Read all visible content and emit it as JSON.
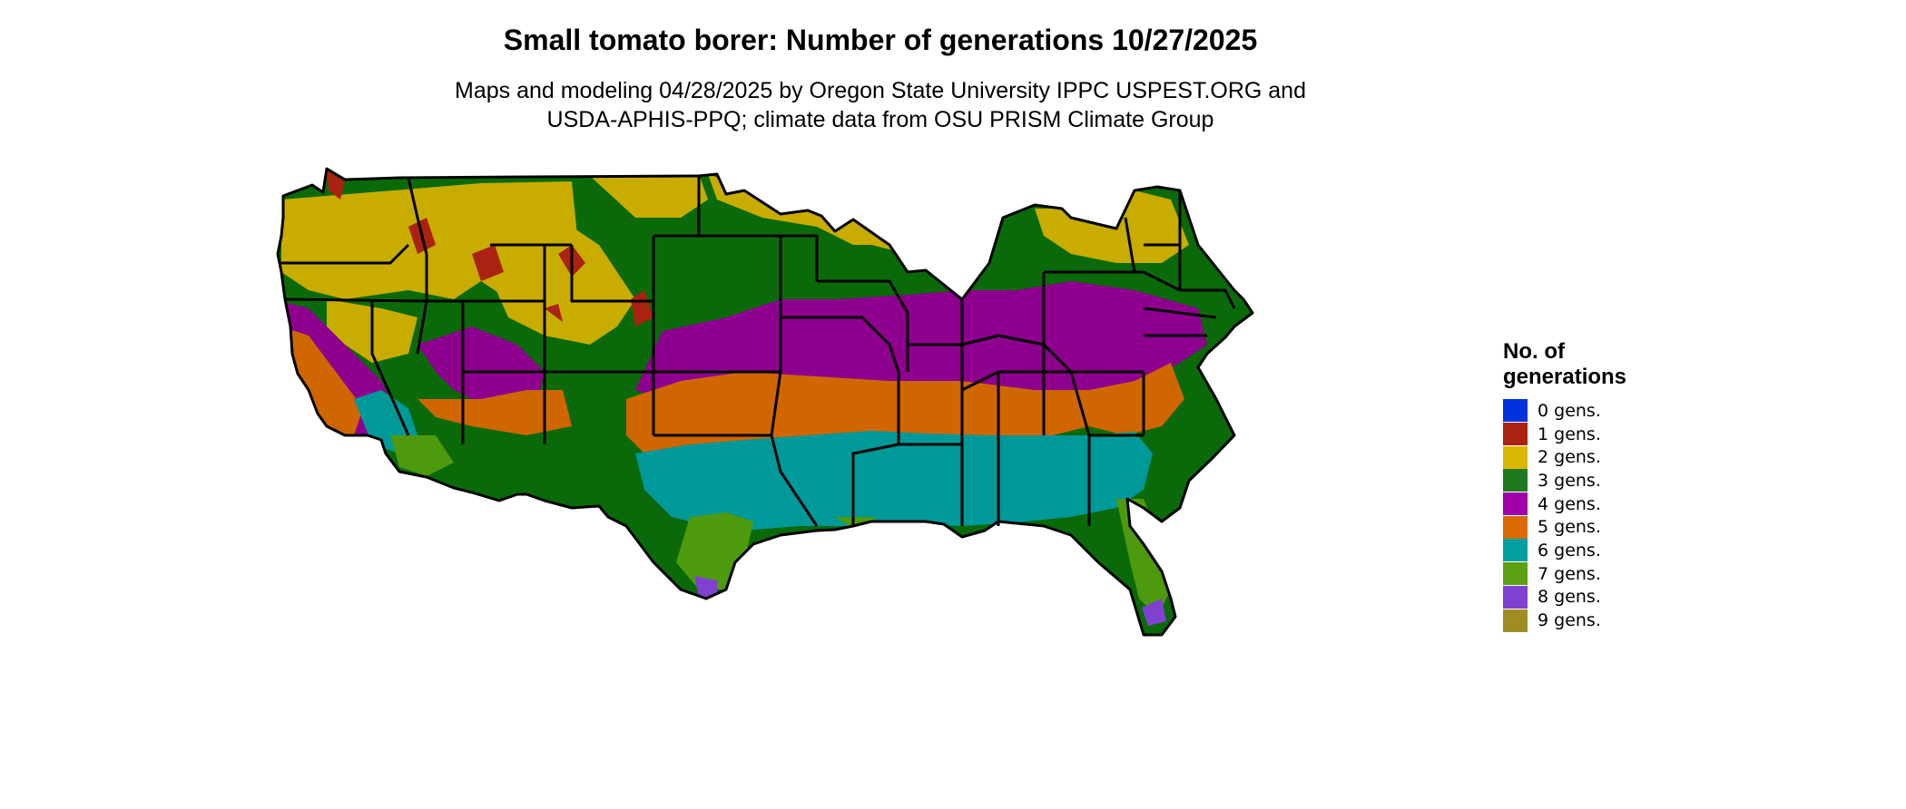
{
  "map": {
    "title": "Small tomato borer: Number of generations 10/27/2025",
    "subtitle_line1": "Maps and modeling 04/28/2025 by Oregon State University IPPC USPEST.ORG and",
    "subtitle_line2": "USDA-APHIS-PPQ; climate data from OSU PRISM Climate Group",
    "region": "contiguous United States",
    "border_color": "#000000"
  },
  "legend": {
    "title_line1": "No. of",
    "title_line2": "generations",
    "items": [
      {
        "label": "0 gens.",
        "color": "#0033dd"
      },
      {
        "label": "1 gens.",
        "color": "#aa2211"
      },
      {
        "label": "2 gens.",
        "color": "#d8b800"
      },
      {
        "label": "3 gens.",
        "color": "#1e7a1e"
      },
      {
        "label": "4 gens.",
        "color": "#a000aa"
      },
      {
        "label": "5 gens.",
        "color": "#d86a00"
      },
      {
        "label": "6 gens.",
        "color": "#00a0a0"
      },
      {
        "label": "7 gens.",
        "color": "#5aa010"
      },
      {
        "label": "8 gens.",
        "color": "#8040d0"
      },
      {
        "label": "9 gens.",
        "color": "#a08c20"
      }
    ]
  }
}
